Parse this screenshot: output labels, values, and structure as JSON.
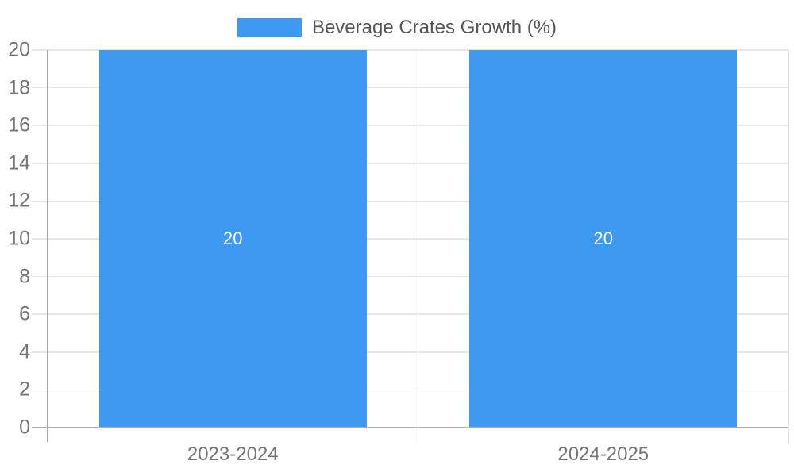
{
  "chart_data": {
    "type": "bar",
    "title": "",
    "legend": {
      "label": "Beverage Crates Growth (%)",
      "position": "top-center"
    },
    "categories": [
      "2023-2024",
      "2024-2025"
    ],
    "series": [
      {
        "name": "Beverage Crates Growth (%)",
        "values": [
          20,
          20
        ]
      }
    ],
    "bar_value_labels": [
      "20",
      "20"
    ],
    "xlabel": "",
    "ylabel": "",
    "ylim": [
      0,
      20
    ],
    "yticks": [
      0,
      2,
      4,
      6,
      8,
      10,
      12,
      14,
      16,
      18,
      20
    ],
    "grid": true,
    "colors": {
      "bar": "#3D9AF0",
      "gridline": "#e7e7e7",
      "axis_line": "#a6a6a6",
      "baseline": "#b0b0b0",
      "divider": "#e3e3e3",
      "tick_text": "#757575",
      "legend_text": "#555555",
      "bar_label_text": "#ffffff",
      "background": "#ffffff"
    }
  }
}
